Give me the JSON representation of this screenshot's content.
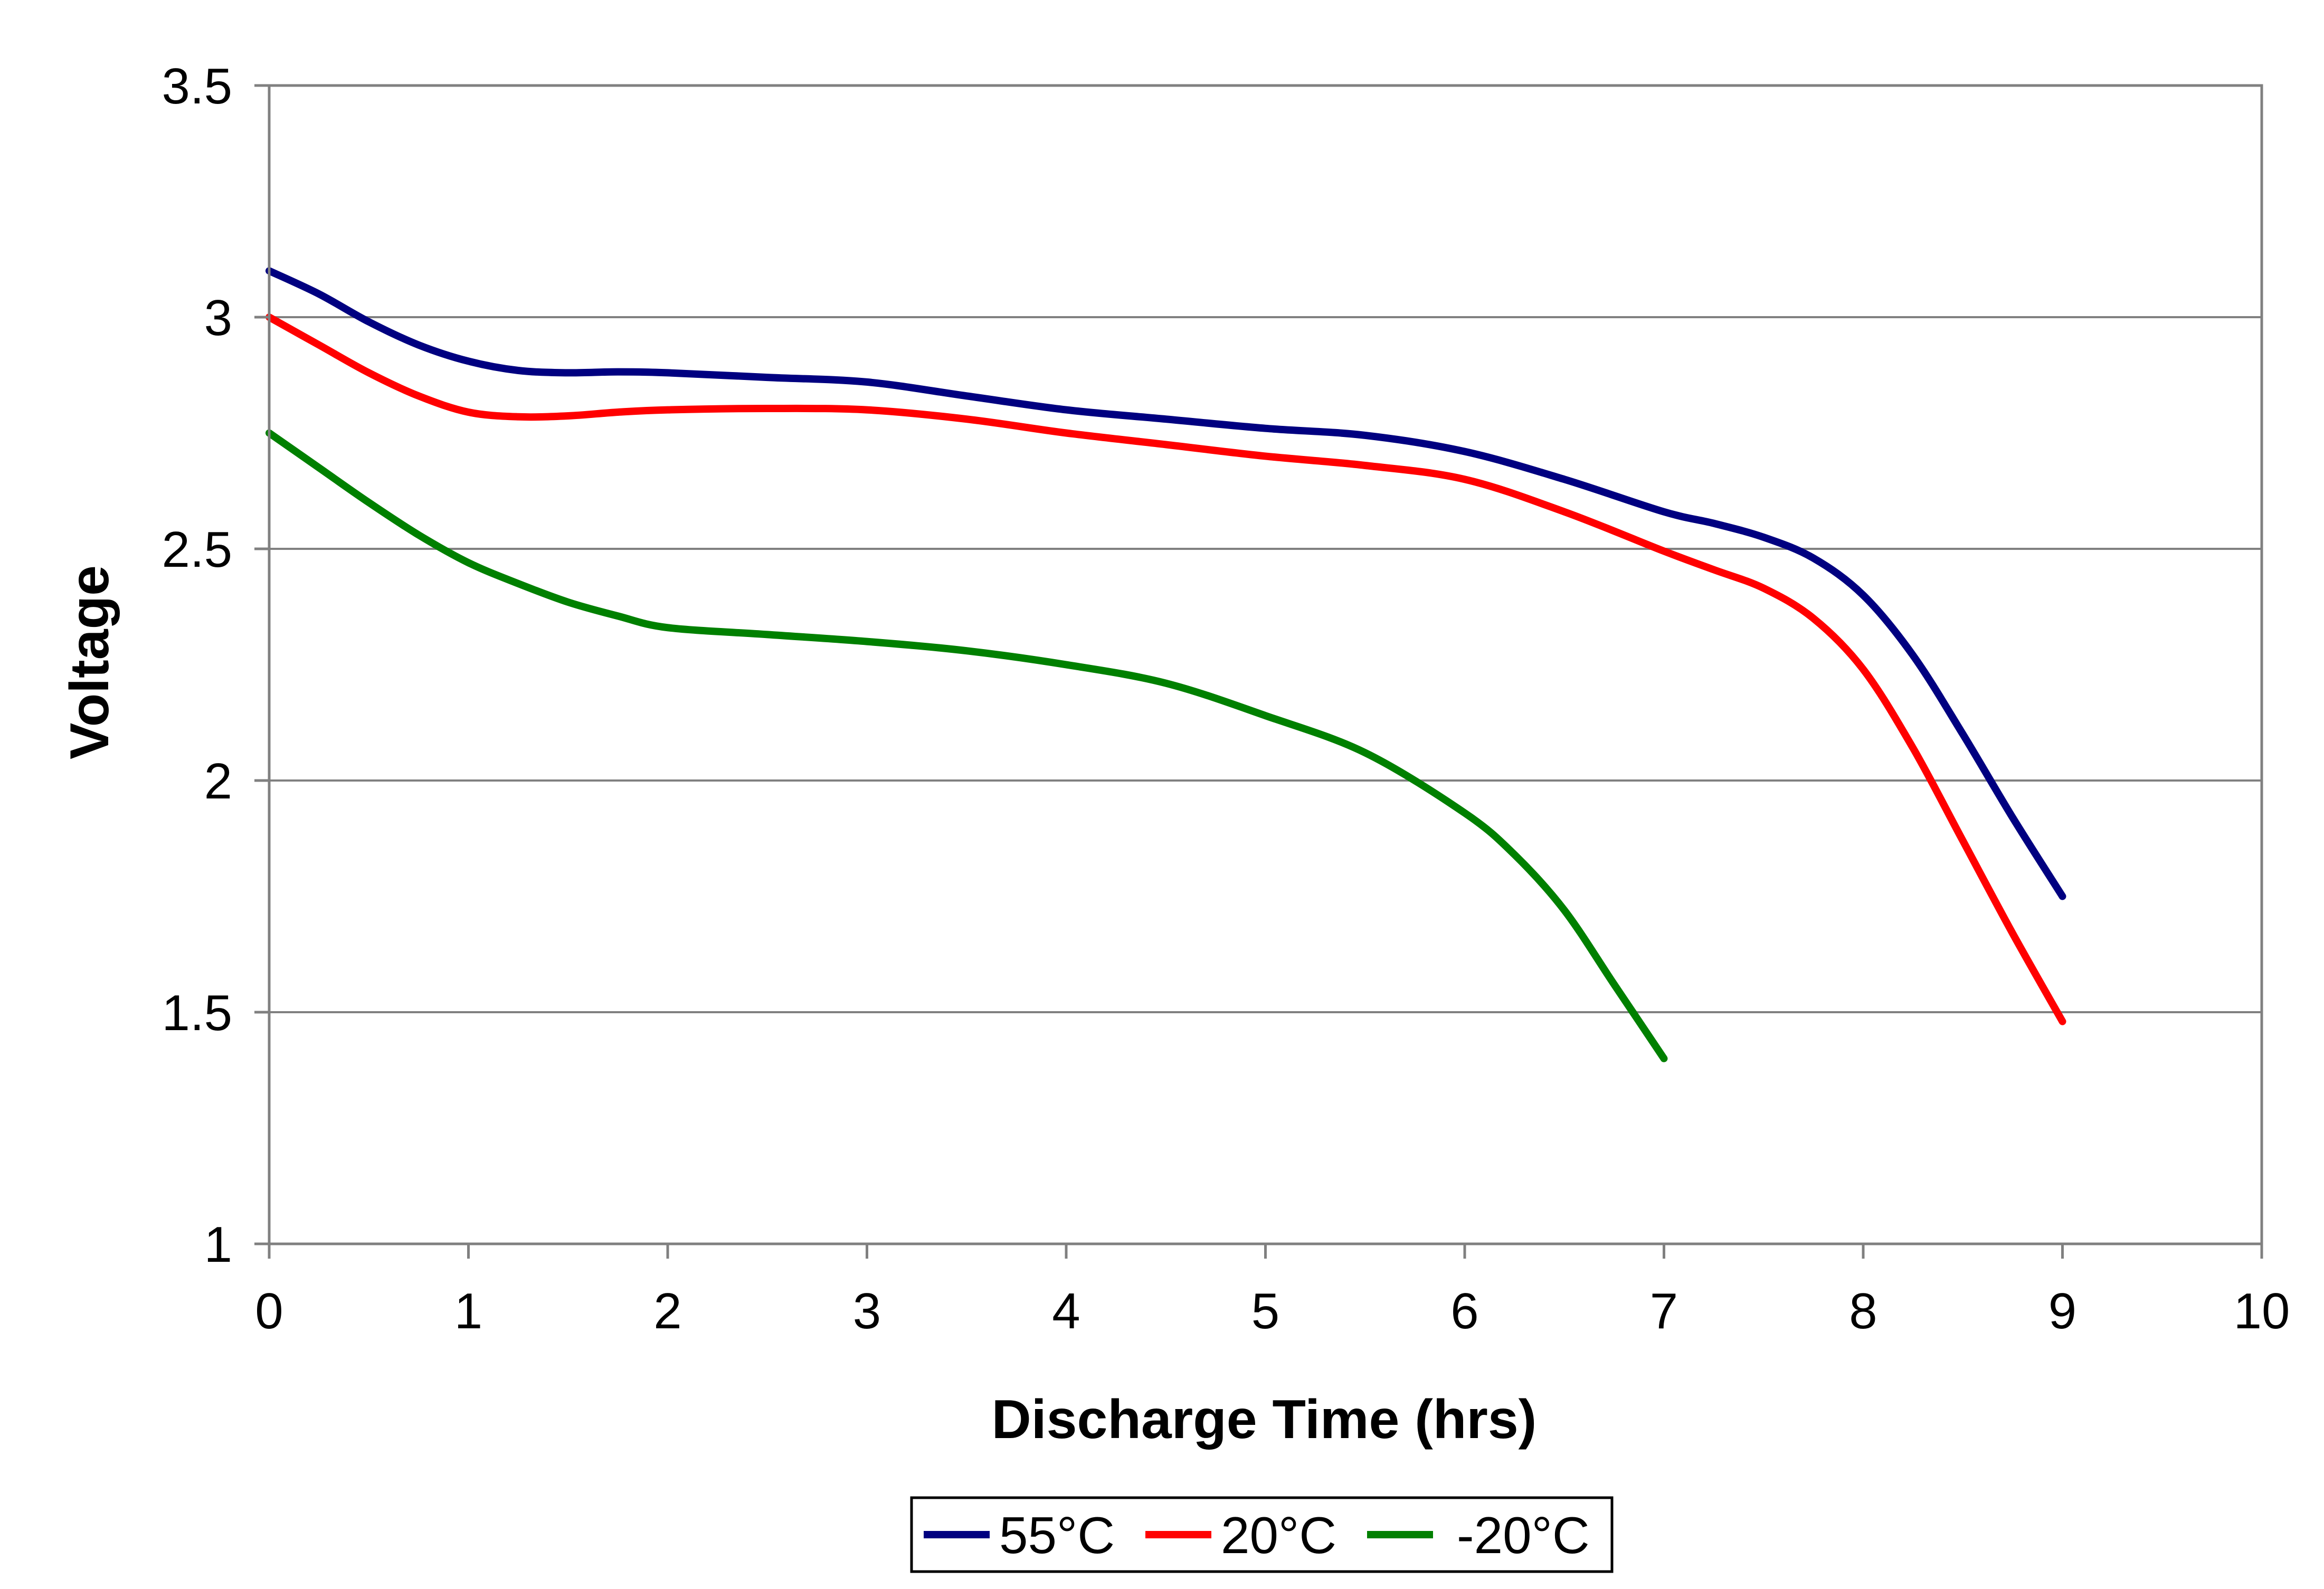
{
  "chart_data": {
    "type": "line",
    "title": "",
    "xlabel": "Discharge Time (hrs)",
    "ylabel": "Voltage",
    "xlim": [
      0,
      10
    ],
    "ylim": [
      1,
      3.5
    ],
    "x_ticks": [
      "0",
      "1",
      "2",
      "3",
      "4",
      "5",
      "6",
      "7",
      "8",
      "9",
      "10"
    ],
    "y_ticks": [
      "1",
      "1.5",
      "2",
      "2.5",
      "3",
      "3.5"
    ],
    "grid": "horizontal",
    "legend_position": "bottom",
    "series": [
      {
        "name": "55°C",
        "color": "#000080",
        "x": [
          0,
          0.25,
          0.5,
          0.75,
          1,
          1.25,
          1.5,
          1.75,
          2,
          2.5,
          3,
          3.5,
          4,
          4.5,
          5,
          5.5,
          6,
          6.5,
          7,
          7.25,
          7.5,
          7.75,
          8,
          8.25,
          8.5,
          8.75,
          9
        ],
        "y": [
          3.1,
          3.05,
          2.99,
          2.94,
          2.905,
          2.885,
          2.88,
          2.882,
          2.88,
          2.87,
          2.86,
          2.83,
          2.8,
          2.78,
          2.76,
          2.745,
          2.71,
          2.65,
          2.58,
          2.555,
          2.525,
          2.48,
          2.4,
          2.27,
          2.1,
          1.92,
          1.75
        ]
      },
      {
        "name": "20°C",
        "color": "#ff0000",
        "x": [
          0,
          0.25,
          0.5,
          0.75,
          1,
          1.25,
          1.5,
          1.75,
          2,
          2.5,
          3,
          3.5,
          4,
          4.5,
          5,
          5.5,
          6,
          6.5,
          7,
          7.25,
          7.5,
          7.75,
          8,
          8.25,
          8.5,
          8.75,
          9
        ],
        "y": [
          3.0,
          2.94,
          2.88,
          2.83,
          2.795,
          2.785,
          2.787,
          2.795,
          2.8,
          2.803,
          2.8,
          2.78,
          2.75,
          2.725,
          2.7,
          2.68,
          2.65,
          2.58,
          2.495,
          2.455,
          2.415,
          2.35,
          2.24,
          2.07,
          1.87,
          1.67,
          1.48
        ]
      },
      {
        "name": "-20°C",
        "color": "#008000",
        "x": [
          0,
          0.25,
          0.5,
          0.75,
          1,
          1.25,
          1.5,
          1.75,
          2,
          2.5,
          3,
          3.5,
          4,
          4.5,
          5,
          5.5,
          6,
          6.25,
          6.5,
          6.75,
          7
        ],
        "y": [
          2.75,
          2.675,
          2.6,
          2.53,
          2.47,
          2.425,
          2.385,
          2.355,
          2.33,
          2.315,
          2.3,
          2.28,
          2.25,
          2.21,
          2.14,
          2.06,
          1.93,
          1.84,
          1.72,
          1.56,
          1.4
        ]
      }
    ]
  }
}
